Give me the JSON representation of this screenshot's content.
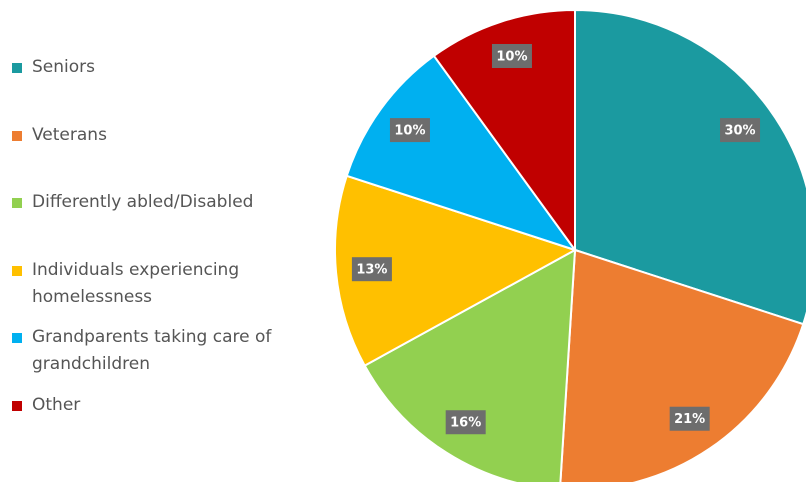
{
  "chart_data": {
    "type": "pie",
    "categories": [
      "Seniors",
      "Veterans",
      "Differently abled/Disabled",
      "Individuals experiencing homelessness",
      "Grandparents taking care of grandchildren",
      "Other"
    ],
    "values": [
      30,
      21,
      16,
      13,
      10,
      10
    ],
    "value_labels": [
      "30%",
      "21%",
      "16%",
      "13%",
      "10%",
      "10%"
    ],
    "colors": [
      "#1b9aa0",
      "#ed7d31",
      "#92d050",
      "#ffc000",
      "#00b0f0",
      "#c00000"
    ]
  }
}
